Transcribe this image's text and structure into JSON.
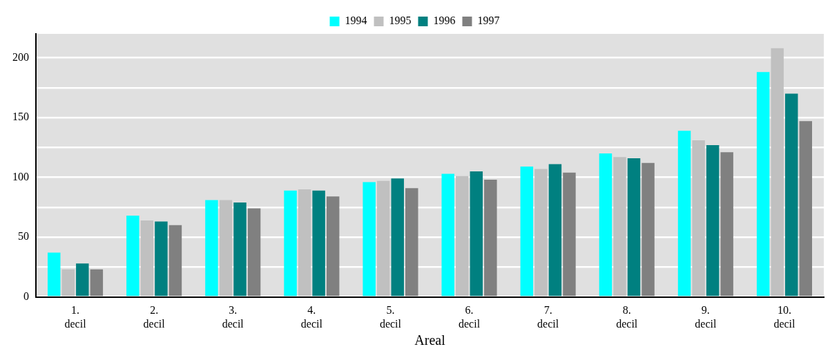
{
  "chart_data": {
    "type": "bar",
    "xlabel": "Areal",
    "categories": [
      "1. decil",
      "2. decil",
      "3. decil",
      "4. decil",
      "5. decil",
      "6. decil",
      "7. decil",
      "8. decil",
      "9. decil",
      "10. decil"
    ],
    "series": [
      {
        "name": "1994",
        "color": "#00ffff",
        "values": [
          37,
          68,
          81,
          89,
          96,
          103,
          109,
          120,
          139,
          188
        ]
      },
      {
        "name": "1995",
        "color": "#c0c0c0",
        "values": [
          23,
          64,
          81,
          90,
          97,
          101,
          107,
          117,
          131,
          208
        ]
      },
      {
        "name": "1996",
        "color": "#008080",
        "values": [
          28,
          63,
          79,
          89,
          99,
          105,
          111,
          116,
          127,
          170
        ]
      },
      {
        "name": "1997",
        "color": "#808080",
        "values": [
          23,
          60,
          74,
          84,
          91,
          98,
          104,
          112,
          121,
          147
        ]
      }
    ],
    "ylim": [
      0,
      220
    ],
    "yticks": [
      0,
      {
        "value": 25,
        "label": null
      },
      50,
      {
        "value": 75,
        "label": null
      },
      100,
      {
        "value": 125,
        "label": null
      },
      150,
      {
        "value": 175,
        "label": null
      },
      200
    ],
    "grid": "y",
    "legend": "top"
  }
}
